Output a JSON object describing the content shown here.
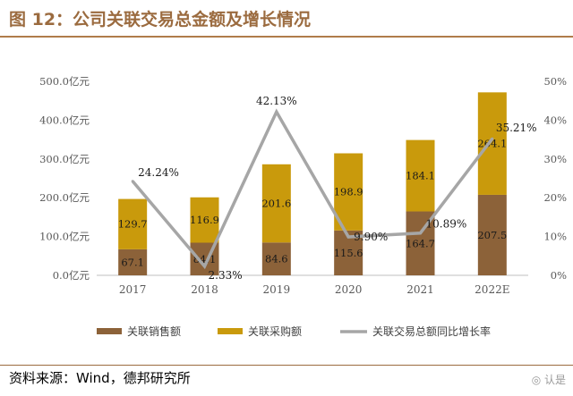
{
  "header": {
    "title": "图 12：公司关联交易总金额及增长情况"
  },
  "footer": {
    "source": "资料来源：Wind，德邦研究所",
    "watermark": "◎ 认是"
  },
  "colors": {
    "sales": "#8c6239",
    "purchase": "#c99a0c",
    "growth": "#a6a6a6",
    "title": "#9b6b3f"
  },
  "chart_data": {
    "type": "bar",
    "stacked": true,
    "categories": [
      "2017",
      "2018",
      "2019",
      "2020",
      "2021",
      "2022E"
    ],
    "series": [
      {
        "name": "关联销售额",
        "values": [
          67.1,
          84.1,
          84.6,
          115.6,
          164.7,
          207.5
        ],
        "labels": [
          "67.1",
          "84.1",
          "84.6",
          "115.6",
          "164.7",
          "207.5"
        ]
      },
      {
        "name": "关联采购额",
        "values": [
          129.7,
          116.9,
          201.6,
          198.9,
          184.1,
          264.1
        ],
        "labels": [
          "129.7",
          "116.9",
          "201.6",
          "198.9",
          "184.1",
          "264.1"
        ]
      }
    ],
    "line_series": {
      "name": "关联交易总额同比增长率",
      "values": [
        24.24,
        2.33,
        42.13,
        9.9,
        10.89,
        35.21
      ],
      "labels": [
        "24.24%",
        "2.33%",
        "42.13%",
        "9.90%",
        "10.89%",
        "35.21%"
      ]
    },
    "y_left": {
      "min": 0,
      "max": 500,
      "ticks": [
        "0.0亿元",
        "100.0亿元",
        "200.0亿元",
        "300.0亿元",
        "400.0亿元",
        "500.0亿元"
      ]
    },
    "y_right": {
      "min": 0,
      "max": 50,
      "ticks": [
        "0%",
        "10%",
        "20%",
        "30%",
        "40%",
        "50%"
      ]
    },
    "legend": {
      "position": "bottom",
      "items": [
        "关联销售额",
        "关联采购额",
        "关联交易总额同比增长率"
      ]
    }
  }
}
